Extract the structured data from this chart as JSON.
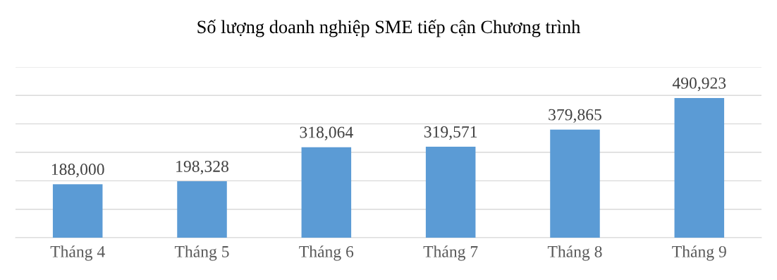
{
  "chart_data": {
    "type": "bar",
    "title": "Số lượng doanh nghiệp SME tiếp cận Chương trình",
    "categories": [
      "Tháng 4",
      "Tháng 5",
      "Tháng 6",
      "Tháng 7",
      "Tháng 8",
      "Tháng 9"
    ],
    "values": [
      188000,
      198328,
      318064,
      319571,
      379865,
      490923
    ],
    "color": "#5b9bd5",
    "value_labels": [
      "188,000",
      "198,328",
      "318,064",
      "319,571",
      "379,865",
      "490,923"
    ],
    "tick_labels": "x",
    "grid": "y",
    "legend": false
  }
}
